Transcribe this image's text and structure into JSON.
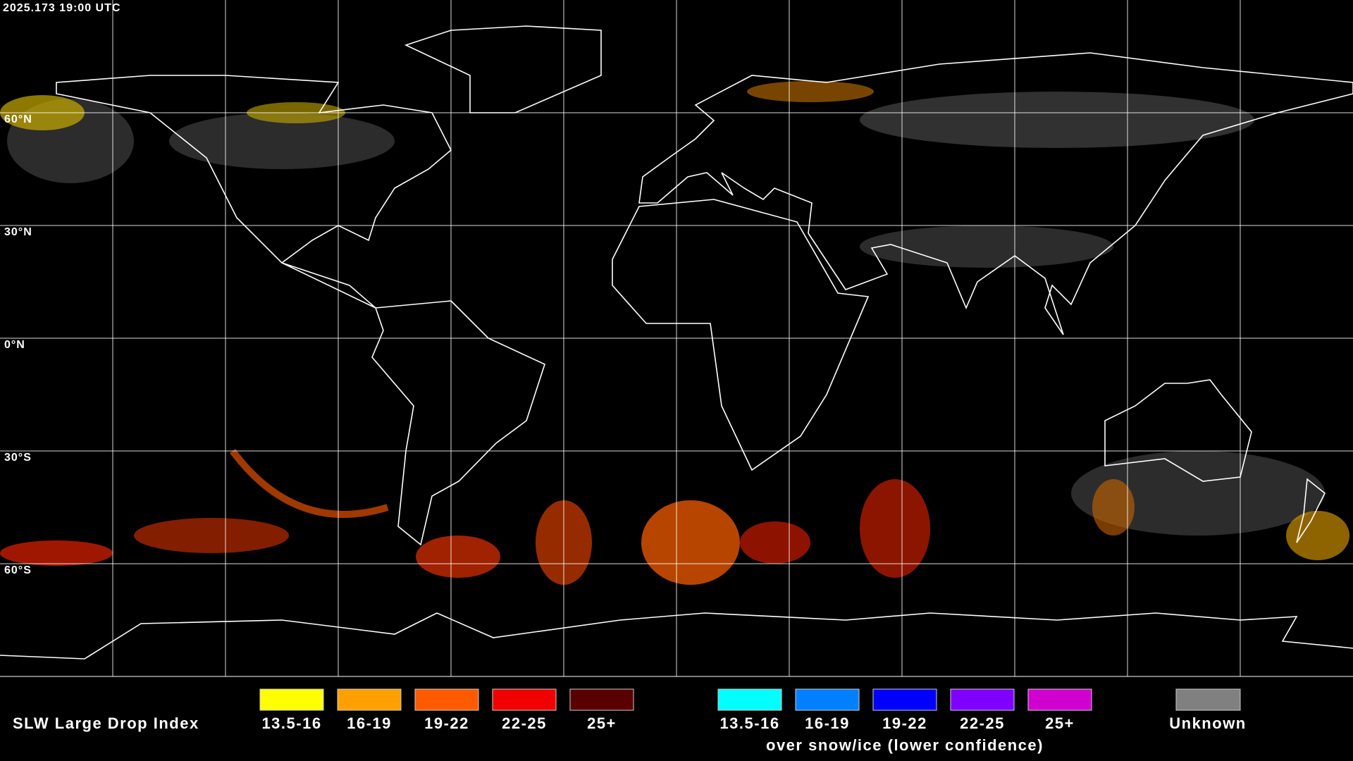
{
  "header": {
    "timestamp": "2025.173 19:00 UTC"
  },
  "map": {
    "lat_labels": [
      "60°N",
      "30°N",
      "0°N",
      "30°S",
      "60°S"
    ]
  },
  "legend": {
    "title": "SLW Large Drop Index",
    "groups": [
      {
        "items": [
          {
            "label": "13.5-16",
            "color": "#ffff00"
          },
          {
            "label": "16-19",
            "color": "#ffa000"
          },
          {
            "label": "19-22",
            "color": "#ff5a00"
          },
          {
            "label": "22-25",
            "color": "#f00000"
          },
          {
            "label": "25+",
            "color": "#5a0000"
          }
        ]
      },
      {
        "items": [
          {
            "label": "13.5-16",
            "color": "#00ffff"
          },
          {
            "label": "16-19",
            "color": "#0080ff"
          },
          {
            "label": "19-22",
            "color": "#0000ff"
          },
          {
            "label": "22-25",
            "color": "#8000ff"
          },
          {
            "label": "25+",
            "color": "#d000d0"
          }
        ],
        "note": "over snow/ice (lower confidence)"
      }
    ],
    "unknown": {
      "label": "Unknown",
      "color": "#808080"
    }
  }
}
